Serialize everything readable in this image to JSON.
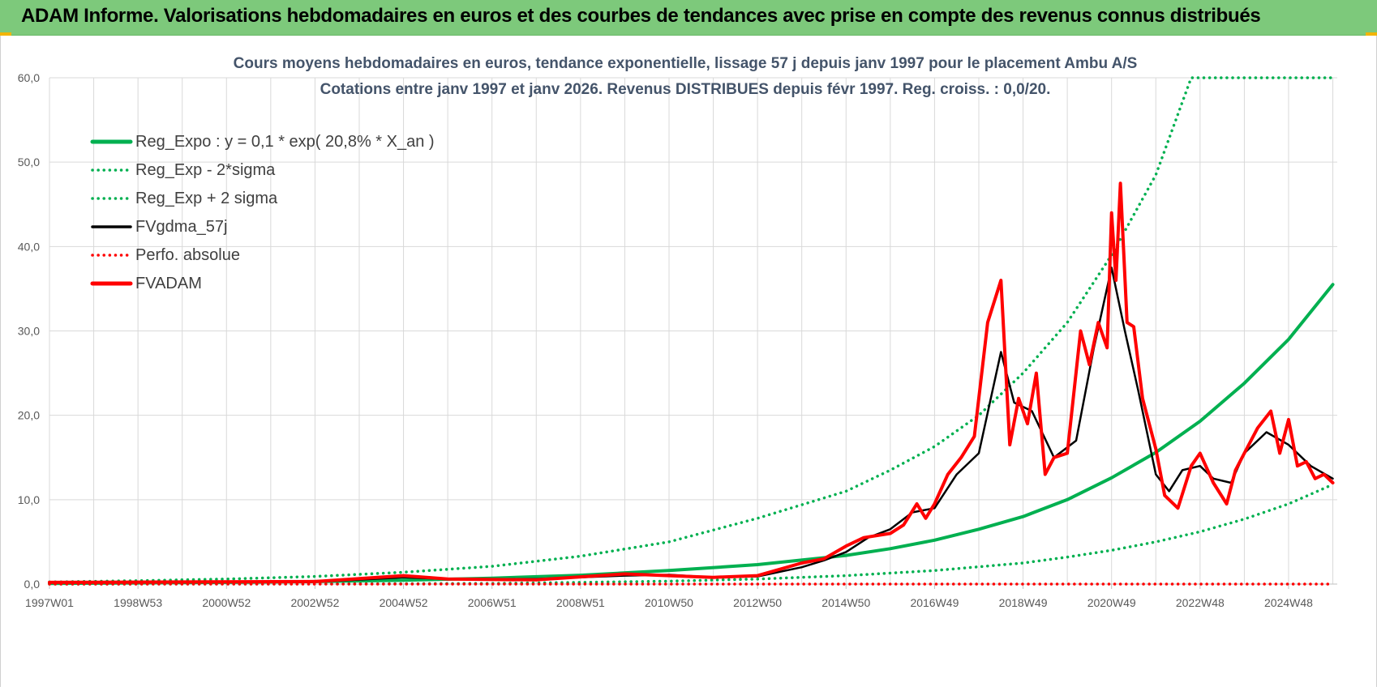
{
  "banner": {
    "title": "ADAM Informe. Valorisations hebdomadaires en euros et des courbes de tendances avec prise en compte des revenus connus distribués"
  },
  "colors": {
    "banner": "#7dc97b",
    "green": "#00b050",
    "red": "#ff0000",
    "black": "#000000",
    "grid": "#d9d9d9"
  },
  "chart_data": {
    "type": "line",
    "title": "Cours moyens hebdomadaires en euros, tendance exponentielle, lissage 57 j depuis janv 1997 pour le placement Ambu A/S",
    "subtitle": "Cotations entre janv 1997 et janv 2026. Revenus DISTRIBUES depuis févr 1997. Reg. croiss. : 0,0/20.",
    "xlabel": "",
    "ylabel": "",
    "x_range": [
      1997.0,
      2026.1
    ],
    "ylim": [
      0,
      60
    ],
    "y_ticks": [
      "0,0",
      "10,0",
      "20,0",
      "30,0",
      "40,0",
      "50,0",
      "60,0"
    ],
    "x_ticks": [
      {
        "label": "1997W01",
        "t": 1997.0
      },
      {
        "label": "1998W53",
        "t": 1999.0
      },
      {
        "label": "2000W52",
        "t": 2001.0
      },
      {
        "label": "2002W52",
        "t": 2003.0
      },
      {
        "label": "2004W52",
        "t": 2005.0
      },
      {
        "label": "2006W51",
        "t": 2007.0
      },
      {
        "label": "2008W51",
        "t": 2009.0
      },
      {
        "label": "2010W50",
        "t": 2011.0
      },
      {
        "label": "2012W50",
        "t": 2013.0
      },
      {
        "label": "2014W50",
        "t": 2015.0
      },
      {
        "label": "2016W49",
        "t": 2017.0
      },
      {
        "label": "2018W49",
        "t": 2019.0
      },
      {
        "label": "2020W49",
        "t": 2021.0
      },
      {
        "label": "2022W48",
        "t": 2023.0
      },
      {
        "label": "2024W48",
        "t": 2025.0
      }
    ],
    "grid": true,
    "legend_position": "top-left",
    "series": [
      {
        "name": "Reg_Expo : y = 0,1 * exp( 20,8% *  X_an )",
        "style": "solid-thick",
        "color": "#00b050",
        "x": [
          1997,
          1999,
          2001,
          2003,
          2005,
          2007,
          2009,
          2011,
          2013,
          2015,
          2016,
          2017,
          2018,
          2019,
          2020,
          2021,
          2022,
          2023,
          2024,
          2025,
          2026
        ],
        "values": [
          0.08,
          0.13,
          0.2,
          0.3,
          0.46,
          0.7,
          1.05,
          1.6,
          2.3,
          3.4,
          4.2,
          5.2,
          6.5,
          8.0,
          10.0,
          12.6,
          15.6,
          19.3,
          23.8,
          29.0,
          35.5
        ]
      },
      {
        "name": "Reg_Exp - 2*sigma",
        "style": "dotted",
        "color": "#00b050",
        "x": [
          1997,
          2003,
          2007,
          2009,
          2011,
          2013,
          2015,
          2017,
          2019,
          2020,
          2021,
          2022,
          2023,
          2024,
          2025,
          2026
        ],
        "values": [
          0.0,
          0.02,
          0.08,
          0.2,
          0.35,
          0.6,
          1.0,
          1.6,
          2.5,
          3.2,
          4.0,
          5.0,
          6.2,
          7.7,
          9.5,
          11.8
        ]
      },
      {
        "name": "Reg_Exp + 2 sigma",
        "style": "dotted",
        "color": "#00b050",
        "x": [
          1997,
          1999,
          2001,
          2003,
          2005,
          2007,
          2009,
          2011,
          2013,
          2015,
          2016,
          2017,
          2018,
          2019,
          2020,
          2021,
          2022,
          2022.8,
          2023,
          2024,
          2025,
          2026
        ],
        "values": [
          0.25,
          0.4,
          0.6,
          0.9,
          1.4,
          2.1,
          3.3,
          5.0,
          7.8,
          11.0,
          13.5,
          16.3,
          20.0,
          25.0,
          31.0,
          39.0,
          48.5,
          60.0,
          60.0,
          60.0,
          60.0,
          60.0
        ]
      },
      {
        "name": "FVgdma_57j",
        "style": "solid",
        "color": "#000000",
        "x": [
          1997,
          2003,
          2005,
          2006,
          2008,
          2010,
          2011,
          2012,
          2013,
          2014,
          2014.5,
          2015,
          2015.5,
          2016,
          2016.5,
          2017,
          2017.5,
          2018,
          2018.5,
          2018.8,
          2019.2,
          2019.7,
          2020.2,
          2020.6,
          2021,
          2021.3,
          2021.6,
          2022,
          2022.3,
          2022.6,
          2023,
          2023.3,
          2023.7,
          2024,
          2024.5,
          2025,
          2025.5,
          2026
        ],
        "values": [
          0.2,
          0.25,
          0.8,
          0.6,
          0.6,
          1.0,
          1.1,
          0.8,
          0.9,
          2.0,
          2.8,
          3.8,
          5.5,
          6.5,
          8.5,
          9.0,
          13.0,
          15.5,
          27.5,
          21.5,
          20.5,
          15.0,
          17.0,
          28.0,
          37.5,
          30.0,
          23.0,
          13.0,
          11.0,
          13.5,
          14.0,
          12.5,
          12.0,
          15.5,
          18.0,
          16.5,
          14.0,
          12.5
        ]
      },
      {
        "name": "Perfo. absolue",
        "style": "dotted",
        "color": "#ff0000",
        "x": [
          1997,
          2026
        ],
        "values": [
          0.0,
          0.0
        ]
      },
      {
        "name": "FVADAM",
        "style": "solid-thick",
        "color": "#ff0000",
        "x": [
          1997,
          2003,
          2005,
          2006,
          2008,
          2010,
          2011,
          2012,
          2013,
          2014,
          2014.5,
          2015,
          2015.4,
          2016,
          2016.3,
          2016.6,
          2016.8,
          2017,
          2017.3,
          2017.6,
          2017.9,
          2018.2,
          2018.5,
          2018.7,
          2018.9,
          2019.1,
          2019.3,
          2019.5,
          2019.7,
          2020,
          2020.3,
          2020.5,
          2020.7,
          2020.9,
          2021.0,
          2021.1,
          2021.2,
          2021.35,
          2021.5,
          2021.7,
          2022,
          2022.2,
          2022.5,
          2022.8,
          2023,
          2023.3,
          2023.6,
          2023.8,
          2024,
          2024.3,
          2024.6,
          2024.8,
          2025,
          2025.2,
          2025.4,
          2025.6,
          2025.8,
          2026
        ],
        "values": [
          0.2,
          0.3,
          1.0,
          0.6,
          0.5,
          1.2,
          1.0,
          0.8,
          1.0,
          2.5,
          3.0,
          4.5,
          5.5,
          6.0,
          7.0,
          9.5,
          7.8,
          9.5,
          13.0,
          15.0,
          17.5,
          31.0,
          36.0,
          16.5,
          22.0,
          19.0,
          25.0,
          13.0,
          15.0,
          15.5,
          30.0,
          26.0,
          31.0,
          28.0,
          44.0,
          36.0,
          47.5,
          31.0,
          30.5,
          22.0,
          16.0,
          10.5,
          9.0,
          14.0,
          15.5,
          12.0,
          9.5,
          13.5,
          15.5,
          18.5,
          20.5,
          15.5,
          19.5,
          14.0,
          14.5,
          12.5,
          13.0,
          12.0
        ]
      }
    ]
  }
}
